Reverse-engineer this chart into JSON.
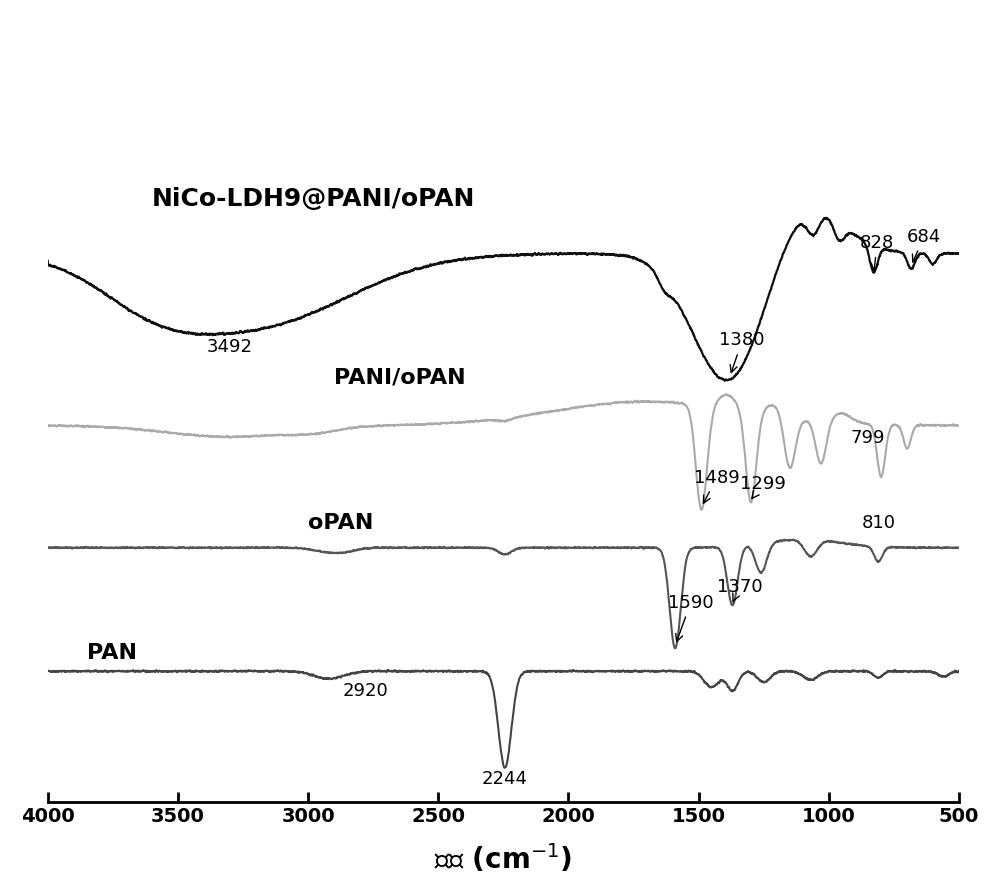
{
  "xlabel_display": "波数 (cm$^{-1}$)",
  "xlim": [
    4000,
    500
  ],
  "x_ticks": [
    4000,
    3500,
    3000,
    2500,
    2000,
    1500,
    1000,
    500
  ],
  "background_color": "#ffffff",
  "spectra": {
    "NiCo": {
      "label": "NiCo-LDH9@PANI/oPAN",
      "color": "#111111",
      "lw": 1.6
    },
    "PANI": {
      "label": "PANI/oPAN",
      "color": "#aaaaaa",
      "lw": 1.5
    },
    "oPAN": {
      "label": "oPAN",
      "color": "#555555",
      "lw": 1.5
    },
    "PAN": {
      "label": "PAN",
      "color": "#444444",
      "lw": 1.5
    }
  }
}
